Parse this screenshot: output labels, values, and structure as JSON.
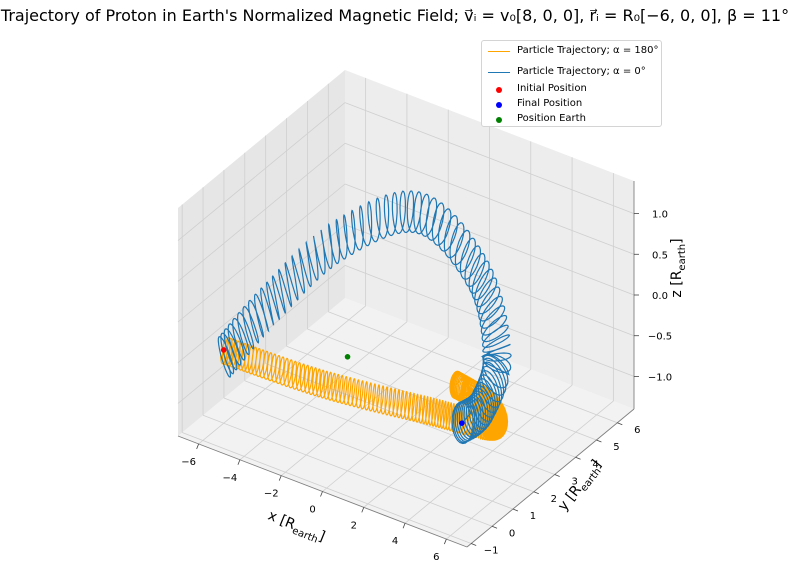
{
  "chart_data": {
    "type": "3d-line",
    "title": "Trajectory of Proton in Earth's Normalized Magnetic Field; v⃗ᵢ = v₀[8, 0, 0], r⃗ᵢ = R₀[−6, 0, 0], β = 11°",
    "xlabel": "x [R_earth]",
    "ylabel": "y [R_earth]",
    "zlabel": "z [R_earth]",
    "xlim": [
      -7,
      7
    ],
    "ylim": [
      -1.2,
      6.8
    ],
    "zlim": [
      -1.4,
      1.4
    ],
    "x_ticks": [
      "−6",
      "−4",
      "−2",
      "0",
      "2",
      "4",
      "6"
    ],
    "y_ticks": [
      "−1",
      "0",
      "1",
      "2",
      "3",
      "4",
      "5",
      "6"
    ],
    "z_ticks": [
      "−1.0",
      "−0.5",
      "0.0",
      "0.5",
      "1.0"
    ],
    "x_tick_values": [
      -6,
      -4,
      -2,
      0,
      2,
      4,
      6
    ],
    "y_tick_values": [
      -1,
      0,
      1,
      2,
      3,
      4,
      5,
      6
    ],
    "z_tick_values": [
      -1.0,
      -0.5,
      0.0,
      0.5,
      1.0
    ],
    "grid": true,
    "legend_position": "top-right",
    "series": [
      {
        "name": "Particle Trajectory; α = 180°",
        "color": "#ffa500",
        "kind": "helix",
        "guiding_center": [
          [
            -6,
            0,
            -0.5
          ],
          [
            -2,
            0.8,
            -0.7
          ],
          [
            2,
            2.0,
            -0.9
          ],
          [
            4,
            3.0,
            -1.1
          ],
          [
            2.5,
            4.4,
            -1.3
          ],
          [
            0.3,
            4.9,
            -1.35
          ]
        ],
        "gyro_radius": 0.2,
        "loops": 140
      },
      {
        "name": "Particle Trajectory; α = 0°",
        "color": "#1f77b4",
        "kind": "helix",
        "guiding_center": [
          [
            -6,
            0,
            -0.6
          ],
          [
            -5,
            1.2,
            -0.1
          ],
          [
            -3,
            2.5,
            0.6
          ],
          [
            0,
            3.4,
            1.05
          ],
          [
            3,
            3.3,
            0.6
          ],
          [
            4.2,
            3.0,
            -0.2
          ],
          [
            3.5,
            3.0,
            -0.9
          ],
          [
            2.2,
            3.3,
            -1.3
          ]
        ],
        "gyro_radius": 0.3,
        "loops": 72
      },
      {
        "name": "Initial Position",
        "color": "#ff0000",
        "kind": "point",
        "point": [
          -6,
          0,
          -0.5
        ]
      },
      {
        "name": "Final Position",
        "color": "#0000ff",
        "kind": "point",
        "point": [
          2.2,
          3.3,
          -1.3
        ]
      },
      {
        "name": "Position Earth",
        "color": "#008000",
        "kind": "point",
        "point": [
          0,
          0,
          0
        ]
      }
    ]
  }
}
